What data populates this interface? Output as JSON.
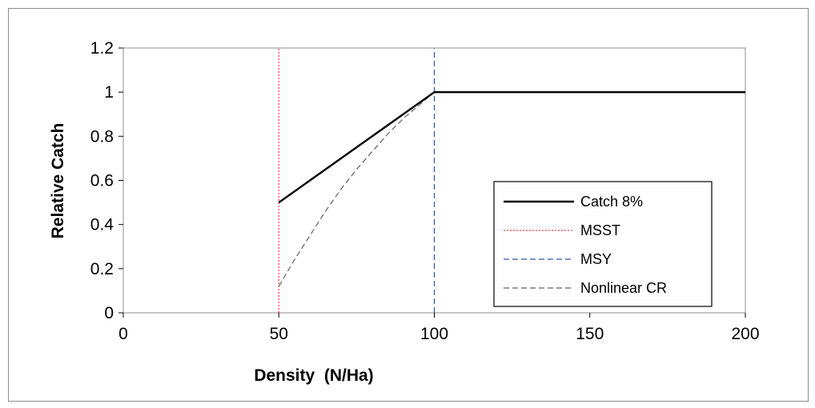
{
  "chart_data": {
    "type": "line",
    "xlabel": "Density  (N/Ha)",
    "ylabel": "Relative Catch",
    "xlim": [
      0,
      200
    ],
    "ylim": [
      0,
      1.2
    ],
    "x_ticks": [
      "0",
      "50",
      "100",
      "150",
      "200"
    ],
    "y_ticks": [
      "0",
      "0.2",
      "0.4",
      "0.6",
      "0.8",
      "1",
      "1.2"
    ],
    "grid": false,
    "legend_position": "right",
    "series": [
      {
        "name": "Catch 8%",
        "style": "solid",
        "color": "#000000",
        "x": [
          50,
          100,
          200
        ],
        "y": [
          0.5,
          1.0,
          1.0
        ]
      },
      {
        "name": "MSST",
        "style": "dotted",
        "color": "#e8404a",
        "x": [
          50,
          50
        ],
        "y": [
          0,
          1.2
        ]
      },
      {
        "name": "MSY",
        "style": "dashed",
        "color": "#3050b0",
        "x": [
          100,
          100
        ],
        "y": [
          0,
          1.2
        ]
      },
      {
        "name": "Nonlinear CR",
        "style": "dashed",
        "color": "#606060",
        "x": [
          50,
          55,
          60,
          65,
          70,
          75,
          80,
          85,
          90,
          95,
          100
        ],
        "y": [
          0.12,
          0.24,
          0.35,
          0.46,
          0.56,
          0.65,
          0.73,
          0.81,
          0.88,
          0.94,
          1.0
        ]
      }
    ]
  }
}
